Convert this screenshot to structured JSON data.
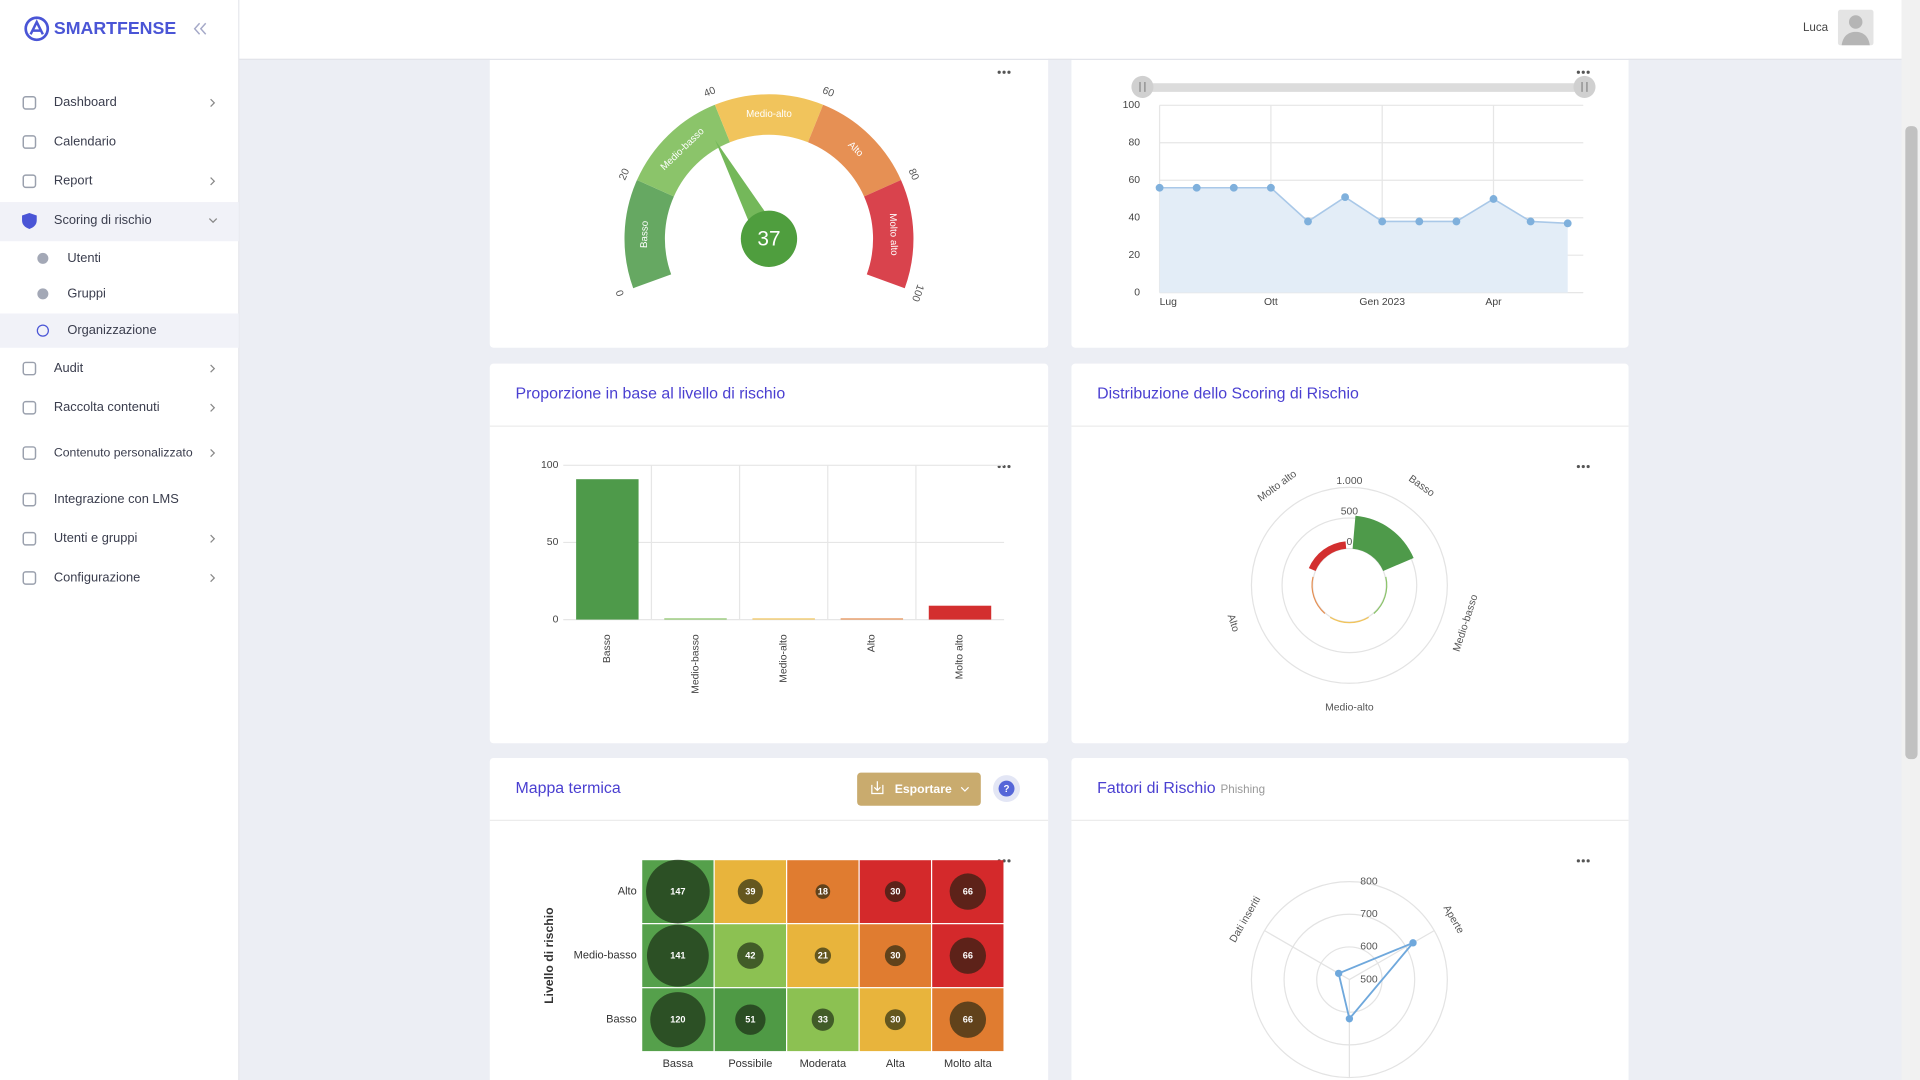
{
  "brand": "SMARTFENSE",
  "user": "Luca",
  "nav": [
    "Dashboard",
    "Calendario",
    "Report",
    "Scoring di rischio",
    "Audit",
    "Raccolta contenuti",
    "Contenuto personalizzato",
    "Integrazione con LMS",
    "Utenti e gruppi",
    "Configurazione"
  ],
  "subnav": [
    "Utenti",
    "Gruppi",
    "Organizzazione"
  ],
  "chart_data": [
    {
      "type": "gauge",
      "value": 37,
      "range": [
        0,
        100
      ],
      "ticks": [
        0,
        20,
        40,
        60,
        80,
        100
      ],
      "needle_color": "#74b85a",
      "bands": [
        {
          "name": "Basso",
          "range": [
            0,
            20
          ],
          "color": "#66a862"
        },
        {
          "name": "Medio-basso",
          "range": [
            20,
            40
          ],
          "color": "#8bc46a"
        },
        {
          "name": "Medio-alto",
          "range": [
            40,
            60
          ],
          "color": "#f1c45c"
        },
        {
          "name": "Alto",
          "range": [
            60,
            80
          ],
          "color": "#e69054"
        },
        {
          "name": "Molto alto",
          "range": [
            80,
            100
          ],
          "color": "#d9434d"
        }
      ]
    },
    {
      "type": "line",
      "categories": [
        "Lug",
        null,
        null,
        "Ott",
        null,
        null,
        "Gen 2023",
        null,
        null,
        "Apr",
        null,
        null
      ],
      "values": [
        56,
        56,
        56,
        56,
        38,
        51,
        38,
        38,
        38,
        50,
        38,
        37
      ],
      "ylim": [
        0,
        100
      ],
      "yticks": [
        0,
        20,
        40,
        60,
        80,
        100
      ],
      "color": "#7fb0dc",
      "grid": true
    },
    {
      "type": "bar",
      "title": "Proporzione in base al livello di rischio",
      "categories": [
        "Basso",
        "Medio-basso",
        "Medio-alto",
        "Alto",
        "Molto alto"
      ],
      "values": [
        91,
        0,
        0,
        0,
        9
      ],
      "colors": [
        "#4e9a4a",
        "#8bc46a",
        "#f1c45c",
        "#e69054",
        "#d32f2f"
      ],
      "ylim": [
        0,
        100
      ],
      "yticks": [
        0,
        50,
        100
      ],
      "grid": true
    },
    {
      "type": "polar",
      "title": "Distribuzione dello Scoring di Rischio",
      "categories": [
        "Basso",
        "Medio-basso",
        "Medio-alto",
        "Alto",
        "Molto alto"
      ],
      "values": [
        540,
        20,
        20,
        20,
        120
      ],
      "colors": [
        "#4e9a4a",
        "#8bc46a",
        "#f1c45c",
        "#e69054",
        "#d32f2f"
      ],
      "rlim": [
        0,
        1000
      ],
      "rticks": [
        0,
        500,
        {
          "value": 1000,
          "label": "1.000"
        }
      ]
    },
    {
      "type": "heatmap",
      "title": "Mappa termica",
      "export_button": "Esportare",
      "help": "?",
      "x": [
        "Bassa",
        "Possibile",
        "Moderata",
        "Alta",
        "Molto alta"
      ],
      "y": [
        "Alto",
        "Medio-basso",
        "Basso"
      ],
      "y_label": "Livello di rischio",
      "values": [
        [
          147,
          39,
          18,
          30,
          66
        ],
        [
          141,
          42,
          21,
          30,
          66
        ],
        [
          120,
          51,
          33,
          30,
          66
        ]
      ],
      "colors": [
        [
          "#55a04b",
          "#e8b43c",
          "#e07c30",
          "#d4292b",
          "#d4292b"
        ],
        [
          "#55a04b",
          "#8cc152",
          "#e8b43c",
          "#e07c30",
          "#d4292b"
        ],
        [
          "#55a04b",
          "#4f9a45",
          "#8cc152",
          "#e8b43c",
          "#e07c30"
        ]
      ]
    },
    {
      "type": "radar",
      "title": "Fattori di Rischio",
      "subtitle": "Phishing",
      "categories": [
        "Aperte",
        null,
        "Dati inseriti"
      ],
      "values": [
        725,
        620,
        538
      ],
      "rlim": [
        500,
        800
      ],
      "rticks": [
        500,
        600,
        700,
        800
      ],
      "color": "#6fa8dc"
    }
  ]
}
